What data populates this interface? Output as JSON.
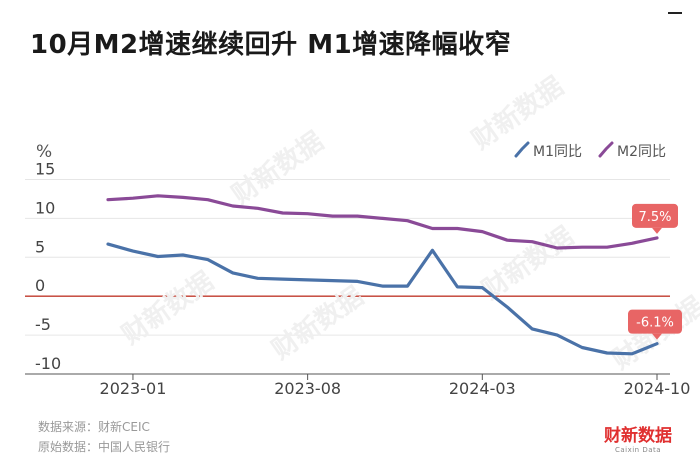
{
  "title": "10月M2增速继续回升 M1增速降幅收窄",
  "footer": {
    "source": "数据来源：财新CEIC",
    "original": "原始数据：中国人民银行"
  },
  "brand": {
    "name": "财新数据",
    "sub": "Caixin Data"
  },
  "chart_data": {
    "type": "line",
    "ylabel": "%",
    "ylim": [
      -10,
      15
    ],
    "yticks": [
      15,
      10,
      5,
      0,
      -5,
      -10
    ],
    "xticks": [
      "2023-01",
      "2023-08",
      "2024-03",
      "2024-10"
    ],
    "grid": true,
    "zero_line": true,
    "legend_position": "top-right",
    "x": [
      "2022-12",
      "2023-01",
      "2023-02",
      "2023-03",
      "2023-04",
      "2023-05",
      "2023-06",
      "2023-07",
      "2023-08",
      "2023-09",
      "2023-10",
      "2023-11",
      "2023-12",
      "2024-01",
      "2024-02",
      "2024-03",
      "2024-04",
      "2024-05",
      "2024-06",
      "2024-07",
      "2024-08",
      "2024-09",
      "2024-10"
    ],
    "series": [
      {
        "name": "M1同比",
        "color": "#4a72a8",
        "values": [
          6.7,
          5.8,
          5.1,
          5.3,
          4.7,
          3.0,
          2.3,
          2.2,
          2.1,
          2.0,
          1.9,
          1.3,
          1.3,
          5.9,
          1.2,
          1.1,
          -1.4,
          -4.2,
          -5.0,
          -6.6,
          -7.3,
          -7.4,
          -6.1
        ]
      },
      {
        "name": "M2同比",
        "color": "#8a4a97",
        "values": [
          12.4,
          12.6,
          12.9,
          12.7,
          12.4,
          11.6,
          11.3,
          10.7,
          10.6,
          10.3,
          10.3,
          10.0,
          9.7,
          8.7,
          8.7,
          8.3,
          7.2,
          7.0,
          6.2,
          6.3,
          6.3,
          6.8,
          7.5
        ]
      }
    ],
    "annotations": [
      {
        "series": "M2同比",
        "label": "7.5%",
        "color": "#e86565"
      },
      {
        "series": "M1同比",
        "label": "-6.1%",
        "color": "#e86565"
      }
    ],
    "watermark": "财新数据"
  }
}
